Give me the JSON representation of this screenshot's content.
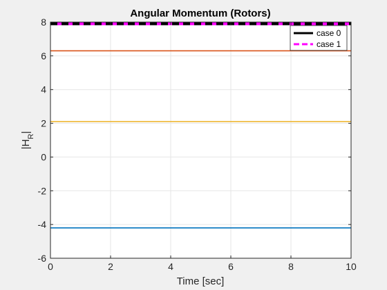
{
  "chart_data": {
    "type": "line",
    "title": "Angular Momentum (Rotors)",
    "xlabel": "Time [sec]",
    "ylabel_main": "|H",
    "ylabel_sub": "R",
    "ylabel_end": "|",
    "xlim": [
      0,
      10
    ],
    "ylim": [
      -6,
      8
    ],
    "xticks": [
      0,
      2,
      4,
      6,
      8,
      10
    ],
    "yticks": [
      -6,
      -4,
      -2,
      0,
      2,
      4,
      6,
      8
    ],
    "grid": true,
    "legend_position": "top-right",
    "lines": [
      {
        "color": "#0072BD",
        "y": -4.2,
        "x": [
          0,
          10
        ],
        "legend": false
      },
      {
        "color": "#EDB120",
        "y": 2.1,
        "x": [
          0,
          10
        ],
        "legend": false
      },
      {
        "color": "#D95319",
        "y": 6.3,
        "x": [
          0,
          10
        ],
        "legend": false
      },
      {
        "color": "#FF00FF",
        "y": 7.9,
        "x": [
          0,
          10
        ],
        "legend": true,
        "name": "case 1",
        "style": "solid-thick"
      },
      {
        "color": "#000000",
        "y": 7.9,
        "x": [
          0,
          10
        ],
        "legend": true,
        "name": "case 0",
        "style": "dashed"
      }
    ],
    "legend_entries": [
      {
        "name": "case 0",
        "color": "#000000"
      },
      {
        "name": "case 1",
        "color": "#FF00FF"
      }
    ]
  }
}
